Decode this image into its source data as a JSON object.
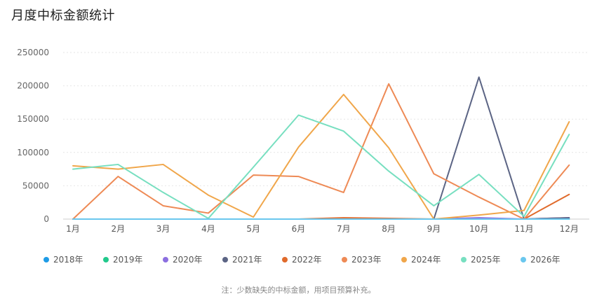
{
  "title": "月度中标金额统计",
  "note": "注：少数缺失的中标金额，用项目预算补充。",
  "chart_data": {
    "type": "line",
    "categories": [
      "1月",
      "2月",
      "3月",
      "4月",
      "5月",
      "6月",
      "7月",
      "8月",
      "9月",
      "10月",
      "11月",
      "12月"
    ],
    "yticks": [
      "0",
      "50000",
      "100000",
      "150000",
      "200000",
      "250000"
    ],
    "ylim": [
      0,
      250000
    ],
    "grid": true,
    "legend_position": "bottom",
    "series": [
      {
        "name": "2018年",
        "color": "#1e9be6",
        "values": [
          0,
          0,
          0,
          0,
          0,
          0,
          0,
          0,
          0,
          0,
          0,
          0
        ]
      },
      {
        "name": "2019年",
        "color": "#21c98c",
        "values": [
          0,
          0,
          0,
          0,
          0,
          0,
          0,
          0,
          0,
          0,
          0,
          0
        ]
      },
      {
        "name": "2020年",
        "color": "#8c6fe0",
        "values": [
          0,
          0,
          0,
          0,
          0,
          0,
          0,
          0,
          0,
          2000,
          0,
          2000
        ]
      },
      {
        "name": "2021年",
        "color": "#5b6484",
        "values": [
          0,
          0,
          0,
          0,
          0,
          0,
          0,
          0,
          0,
          213000,
          0,
          2000
        ]
      },
      {
        "name": "2022年",
        "color": "#e06a2b",
        "values": [
          0,
          0,
          0,
          0,
          0,
          0,
          2000,
          1000,
          0,
          0,
          0,
          37000
        ]
      },
      {
        "name": "2023年",
        "color": "#ee8a55",
        "values": [
          0,
          64000,
          20000,
          9000,
          66000,
          64000,
          40000,
          203000,
          68000,
          33000,
          0,
          81000
        ]
      },
      {
        "name": "2024年",
        "color": "#f0a64a",
        "values": [
          80000,
          75000,
          82000,
          36000,
          3000,
          108000,
          187000,
          107000,
          0,
          6000,
          13000,
          146000
        ]
      },
      {
        "name": "2025年",
        "color": "#77dfc0",
        "values": [
          75000,
          82000,
          40000,
          1000,
          78000,
          156000,
          132000,
          72000,
          20000,
          67000,
          4000,
          127000
        ]
      },
      {
        "name": "2026年",
        "color": "#6ac7ee",
        "values": [
          0,
          0,
          0,
          0,
          0,
          0,
          0,
          0,
          0,
          0,
          0,
          0
        ]
      }
    ]
  }
}
